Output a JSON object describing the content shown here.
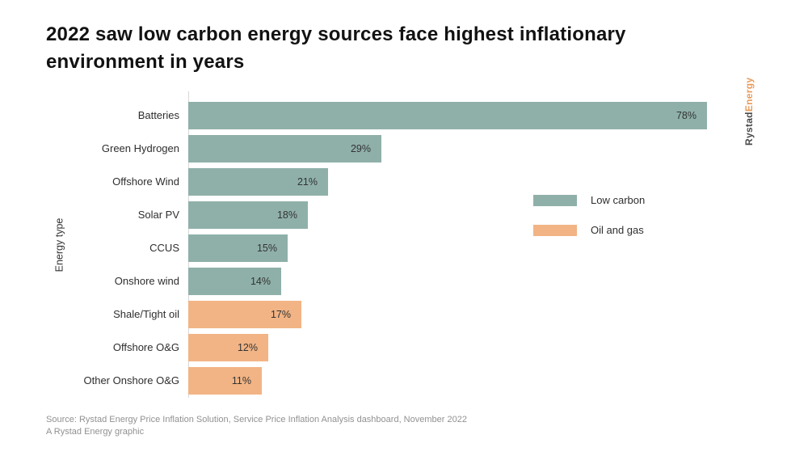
{
  "title": {
    "text": "2022 saw low carbon energy sources face highest inflationary environment in years"
  },
  "logo": {
    "part1": "Rystad",
    "part2": "Energy",
    "part1_color": "#4a4a4a",
    "part2_color": "#e89b5a"
  },
  "chart_data": {
    "type": "bar",
    "orientation": "horizontal",
    "categories": [
      "Batteries",
      "Green Hydrogen",
      "Offshore Wind",
      "Solar PV",
      "CCUS",
      "Onshore wind",
      "Shale/Tight oil",
      "Offshore O&G",
      "Other Onshore O&G"
    ],
    "values": [
      78,
      29,
      21,
      18,
      15,
      14,
      17,
      12,
      11
    ],
    "value_labels": [
      "78%",
      "29%",
      "21%",
      "18%",
      "15%",
      "14%",
      "17%",
      "12%",
      "11%"
    ],
    "groups": [
      "low_carbon",
      "low_carbon",
      "low_carbon",
      "low_carbon",
      "low_carbon",
      "low_carbon",
      "oil_gas",
      "oil_gas",
      "oil_gas"
    ],
    "group_colors": {
      "low_carbon": "#8fb0a9",
      "oil_gas": "#f2b485"
    },
    "title": "2022 saw low carbon energy sources face highest inflationary environment in years",
    "xlabel": "",
    "ylabel": "Energy type",
    "xlim": [
      0,
      78
    ],
    "grid": false,
    "legend_position": "right"
  },
  "legend": {
    "items": [
      {
        "label": "Low carbon",
        "color": "#8fb0a9"
      },
      {
        "label": "Oil and gas",
        "color": "#f2b485"
      }
    ]
  },
  "source": {
    "line1": "Source: Rystad Energy Price Inflation Solution, Service Price Inflation Analysis dashboard, November 2022",
    "line2": "A Rystad Energy graphic"
  }
}
